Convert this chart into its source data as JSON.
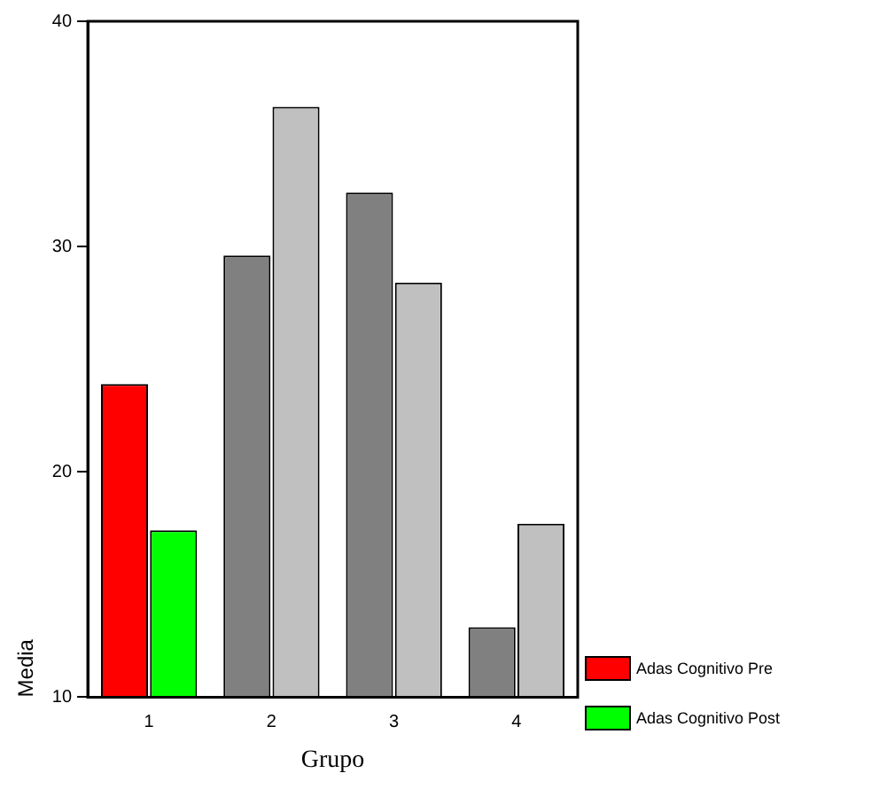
{
  "chart_data": {
    "type": "bar",
    "xlabel": "Grupo",
    "ylabel": "Media",
    "categories": [
      "1",
      "2",
      "3",
      "4"
    ],
    "series": [
      {
        "name": "Adas Cognitivo Pre",
        "colors": [
          "#ff0000",
          "#808080",
          "#808080",
          "#808080"
        ],
        "values": [
          23.9,
          29.6,
          32.4,
          13.1
        ]
      },
      {
        "name": "Adas Cognitivo Post",
        "colors": [
          "#00ff00",
          "#c0c0c0",
          "#c0c0c0",
          "#c0c0c0"
        ],
        "values": [
          17.4,
          36.2,
          28.4,
          17.7
        ]
      }
    ],
    "ylim": [
      10,
      40
    ],
    "yticks": [
      10,
      20,
      30,
      40
    ],
    "grid": false,
    "legend": "bottom right"
  }
}
